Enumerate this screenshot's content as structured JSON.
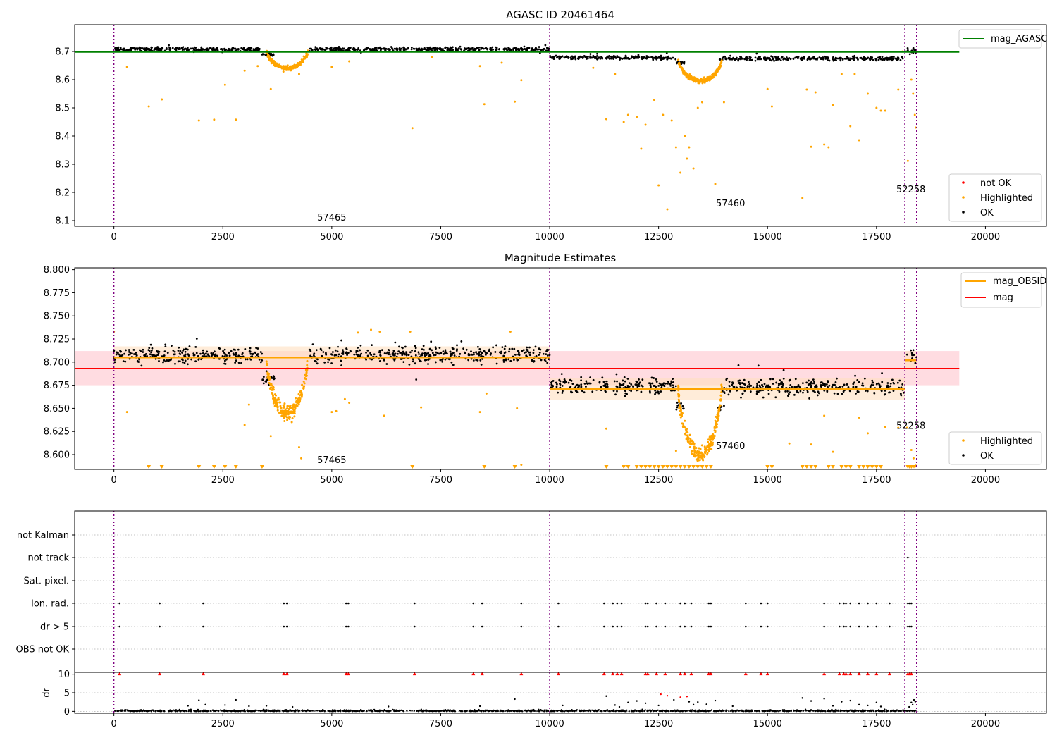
{
  "figure": {
    "colors": {
      "ok": "#000000",
      "highlighted": "#ffa500",
      "not_ok": "#ff0000",
      "agasc_line": "#008000",
      "obsid_line": "#ffa500",
      "mag_line": "#ff0000",
      "mag_band": "#ffc0c8",
      "obsid_band": "#ffe0c0",
      "obs_boundary": "#800080",
      "grid": "#b0b0b0"
    }
  },
  "chart_data": [
    {
      "type": "scatter",
      "title": "AGASC ID 20461464",
      "xlabel": "",
      "ylabel": "",
      "xlim": [
        -900,
        21400
      ],
      "ylim": [
        8.08,
        8.795
      ],
      "xticks": [
        "0",
        "2500",
        "5000",
        "7500",
        "10000",
        "12500",
        "15000",
        "17500",
        "20000"
      ],
      "yticks": [
        "8.1",
        "8.2",
        "8.3",
        "8.4",
        "8.5",
        "8.6",
        "8.7"
      ],
      "obs_boundaries": [
        0,
        10000,
        18150,
        18420
      ],
      "obsid_labels": [
        {
          "label": "57465",
          "x": 5000,
          "y": 8.1
        },
        {
          "label": "57460",
          "x": 14150,
          "y": 8.15
        },
        {
          "label": "52258",
          "x": 18290,
          "y": 8.2
        }
      ],
      "reference_line": {
        "name": "mag_AGASC",
        "value": 8.698,
        "x_range": [
          -900,
          19400
        ]
      },
      "legends": [
        {
          "position": "top-right",
          "entries": [
            "mag_AGASC"
          ]
        },
        {
          "position": "bottom-right",
          "entries": [
            "not OK",
            "Highlighted",
            "OK"
          ]
        }
      ],
      "series": [
        {
          "name": "OK",
          "segments": [
            {
              "x": [
                0,
                3400
              ],
              "mean": 8.708,
              "spread": 0.006
            },
            {
              "x": [
                3400,
                3700
              ],
              "mean": 8.69,
              "spread": 0.006
            },
            {
              "x": [
                4480,
                10000
              ],
              "mean": 8.708,
              "spread": 0.006
            },
            {
              "x": [
                10000,
                12900
              ],
              "mean": 8.678,
              "spread": 0.006
            },
            {
              "x": [
                12900,
                13100
              ],
              "mean": 8.66,
              "spread": 0.006
            },
            {
              "x": [
                13900,
                18150
              ],
              "mean": 8.675,
              "spread": 0.006
            },
            {
              "x": [
                18180,
                18420
              ],
              "mean": 8.703,
              "spread": 0.008
            }
          ]
        },
        {
          "name": "Highlighted",
          "dips": [
            {
              "x": [
                3500,
                4450
              ],
              "depth": 0.06
            },
            {
              "x": [
                12950,
                13950
              ],
              "depth": 0.075
            }
          ],
          "outliers": [
            [
              300,
              8.645
            ],
            [
              800,
              8.505
            ],
            [
              1100,
              8.53
            ],
            [
              1950,
              8.455
            ],
            [
              2300,
              8.458
            ],
            [
              2550,
              8.582
            ],
            [
              2800,
              8.458
            ],
            [
              3000,
              8.632
            ],
            [
              3300,
              8.648
            ],
            [
              3600,
              8.567
            ],
            [
              4250,
              8.62
            ],
            [
              5000,
              8.645
            ],
            [
              5400,
              8.665
            ],
            [
              6850,
              8.428
            ],
            [
              7300,
              8.68
            ],
            [
              8400,
              8.648
            ],
            [
              8500,
              8.513
            ],
            [
              8900,
              8.66
            ],
            [
              9200,
              8.522
            ],
            [
              9350,
              8.598
            ],
            [
              11000,
              8.642
            ],
            [
              11300,
              8.46
            ],
            [
              11500,
              8.62
            ],
            [
              11700,
              8.45
            ],
            [
              11800,
              8.475
            ],
            [
              12000,
              8.468
            ],
            [
              12100,
              8.355
            ],
            [
              12200,
              8.44
            ],
            [
              12400,
              8.528
            ],
            [
              12500,
              8.225
            ],
            [
              12600,
              8.475
            ],
            [
              12700,
              8.14
            ],
            [
              12800,
              8.455
            ],
            [
              12900,
              8.36
            ],
            [
              13000,
              8.27
            ],
            [
              13100,
              8.4
            ],
            [
              13150,
              8.32
            ],
            [
              13200,
              8.36
            ],
            [
              13300,
              8.285
            ],
            [
              13400,
              8.5
            ],
            [
              13500,
              8.52
            ],
            [
              13800,
              8.23
            ],
            [
              14000,
              8.52
            ],
            [
              15000,
              8.567
            ],
            [
              15100,
              8.505
            ],
            [
              15800,
              8.18
            ],
            [
              15900,
              8.565
            ],
            [
              16000,
              8.362
            ],
            [
              16100,
              8.555
            ],
            [
              16300,
              8.37
            ],
            [
              16400,
              8.36
            ],
            [
              16500,
              8.51
            ],
            [
              16700,
              8.62
            ],
            [
              16900,
              8.435
            ],
            [
              17000,
              8.62
            ],
            [
              17100,
              8.385
            ],
            [
              17300,
              8.55
            ],
            [
              17500,
              8.5
            ],
            [
              17600,
              8.49
            ],
            [
              17700,
              8.49
            ],
            [
              18000,
              8.565
            ],
            [
              18100,
              8.7
            ],
            [
              18220,
              8.312
            ],
            [
              18300,
              8.6
            ],
            [
              18340,
              8.55
            ],
            [
              18380,
              8.475
            ],
            [
              18400,
              8.43
            ]
          ]
        },
        {
          "name": "not OK",
          "values": []
        }
      ]
    },
    {
      "type": "scatter",
      "title": "Magnitude Estimates",
      "xlabel": "",
      "ylabel": "",
      "xlim": [
        -900,
        21400
      ],
      "ylim": [
        8.584,
        8.802
      ],
      "xticks": [
        "0",
        "2500",
        "5000",
        "7500",
        "10000",
        "12500",
        "15000",
        "17500",
        "20000"
      ],
      "yticks": [
        "8.600",
        "8.625",
        "8.650",
        "8.675",
        "8.700",
        "8.725",
        "8.750",
        "8.775",
        "8.800"
      ],
      "obs_boundaries": [
        0,
        10000,
        18150,
        18420
      ],
      "obsid_labels": [
        {
          "label": "57465",
          "x": 5000,
          "y": 8.591
        },
        {
          "label": "57460",
          "x": 14150,
          "y": 8.606
        },
        {
          "label": "52258",
          "x": 18290,
          "y": 8.628
        }
      ],
      "mag": {
        "name": "mag",
        "value": 8.693,
        "band": [
          8.675,
          8.712
        ],
        "x_range": [
          -900,
          19400
        ]
      },
      "mag_obsid": [
        {
          "x": [
            0,
            10000
          ],
          "value": 8.705,
          "band": [
            8.693,
            8.717
          ]
        },
        {
          "x": [
            10000,
            18150
          ],
          "value": 8.671,
          "band": [
            8.659,
            8.683
          ]
        },
        {
          "x": [
            18150,
            18420
          ],
          "value": 8.702,
          "band": [
            8.692,
            8.712
          ]
        }
      ],
      "legends": [
        {
          "position": "top-right",
          "entries": [
            "mag_OBSID",
            "mag"
          ]
        },
        {
          "position": "bottom-right",
          "entries": [
            "Highlighted",
            "OK"
          ]
        }
      ],
      "series": [
        {
          "name": "OK",
          "segments": [
            {
              "x": [
                0,
                3400
              ],
              "mean": 8.708,
              "spread": 0.008
            },
            {
              "x": [
                3400,
                3700
              ],
              "mean": 8.683,
              "spread": 0.006
            },
            {
              "x": [
                4480,
                10000
              ],
              "mean": 8.708,
              "spread": 0.008
            },
            {
              "x": [
                10000,
                12900
              ],
              "mean": 8.675,
              "spread": 0.008
            },
            {
              "x": [
                12900,
                13100
              ],
              "mean": 8.652,
              "spread": 0.006
            },
            {
              "x": [
                13850,
                13950
              ],
              "mean": 8.651,
              "spread": 0.004
            },
            {
              "x": [
                13950,
                18150
              ],
              "mean": 8.673,
              "spread": 0.008
            },
            {
              "x": [
                18180,
                18420
              ],
              "mean": 8.705,
              "spread": 0.008
            }
          ]
        },
        {
          "name": "Highlighted",
          "dips": [
            {
              "x": [
                3500,
                4450
              ],
              "depth": 0.06
            },
            {
              "x": [
                12950,
                13950
              ],
              "depth": 0.075
            }
          ],
          "outliers": [
            [
              0,
              8.733
            ],
            [
              300,
              8.646
            ],
            [
              3000,
              8.632
            ],
            [
              3100,
              8.654
            ],
            [
              3600,
              8.62
            ],
            [
              4250,
              8.608
            ],
            [
              4300,
              8.596
            ],
            [
              5000,
              8.646
            ],
            [
              5100,
              8.647
            ],
            [
              5300,
              8.66
            ],
            [
              5400,
              8.656
            ],
            [
              5600,
              8.732
            ],
            [
              5900,
              8.735
            ],
            [
              6100,
              8.733
            ],
            [
              6200,
              8.642
            ],
            [
              6800,
              8.733
            ],
            [
              7050,
              8.651
            ],
            [
              8400,
              8.646
            ],
            [
              8550,
              8.666
            ],
            [
              9100,
              8.733
            ],
            [
              9250,
              8.65
            ],
            [
              9350,
              8.589
            ],
            [
              11300,
              8.628
            ],
            [
              12900,
              8.604
            ],
            [
              15500,
              8.612
            ],
            [
              16000,
              8.611
            ],
            [
              16300,
              8.642
            ],
            [
              16500,
              8.603
            ],
            [
              17100,
              8.64
            ],
            [
              17300,
              8.623
            ],
            [
              17700,
              8.63
            ],
            [
              18000,
              8.629
            ],
            [
              18200,
              8.629
            ],
            [
              18300,
              8.605
            ],
            [
              18350,
              8.596
            ],
            [
              18400,
              8.588
            ]
          ]
        },
        {
          "name": "Highlighted (below axis)",
          "x": [
            800,
            1100,
            1950,
            2300,
            2550,
            2800,
            3400,
            6850,
            8500,
            9200,
            11300,
            11700,
            11800,
            12000,
            12100,
            12200,
            12300,
            12400,
            12500,
            12600,
            12700,
            12800,
            12900,
            13000,
            13100,
            13200,
            13300,
            13400,
            13500,
            13600,
            13700,
            15000,
            15100,
            15800,
            15900,
            16000,
            16100,
            16400,
            16500,
            16700,
            16800,
            16900,
            17100,
            17200,
            17300,
            17400,
            17500,
            17600,
            18220,
            18260,
            18300,
            18340,
            18380
          ]
        }
      ]
    },
    {
      "type": "scatter",
      "title": "",
      "xlabel": "",
      "ylabel": "",
      "xlim": [
        -900,
        21400
      ],
      "row_labels": [
        "not Kalman",
        "not track",
        "Sat. pixel.",
        "Ion. rad.",
        "dr > 5",
        "OBS not OK"
      ],
      "obs_boundaries": [
        0,
        10000,
        18150,
        18420
      ],
      "flags_x": [
        130,
        1050,
        2050,
        3900,
        3970,
        5330,
        5380,
        6900,
        8250,
        8450,
        9350,
        10200,
        11250,
        11450,
        11550,
        11650,
        12200,
        12250,
        12450,
        12650,
        13000,
        13100,
        13250,
        13650,
        13700,
        14500,
        14850,
        15000,
        16300,
        16650,
        16750,
        16800,
        16900,
        17100,
        17300,
        17500,
        17800,
        18220,
        18260,
        18300
      ],
      "flags": {
        "not Kalman": [],
        "not track": [
          18220
        ],
        "Sat. pixel.": [],
        "Ion. rad.": "flags_x",
        "dr > 5": "flags_x",
        "OBS not OK": []
      }
    },
    {
      "type": "scatter",
      "title": "",
      "xlabel": "",
      "ylabel": "dr",
      "xlim": [
        -900,
        21400
      ],
      "ylim": [
        -0.5,
        10.5
      ],
      "xticks": [
        "0",
        "2500",
        "5000",
        "7500",
        "10000",
        "12500",
        "15000",
        "17500",
        "20000"
      ],
      "yticks": [
        "0",
        "5",
        "10"
      ],
      "capped_at": 10,
      "capped_points_x": "flags_x",
      "scattered": [
        [
          1700,
          1.5
        ],
        [
          1950,
          3.0
        ],
        [
          2100,
          1.8
        ],
        [
          2550,
          1.7
        ],
        [
          2800,
          3.1
        ],
        [
          3100,
          1.4
        ],
        [
          3500,
          1.5
        ],
        [
          4100,
          1.2
        ],
        [
          6300,
          1.3
        ],
        [
          8400,
          1.4
        ],
        [
          9200,
          3.3
        ],
        [
          10300,
          1.6
        ],
        [
          11300,
          4.1
        ],
        [
          11500,
          1.7
        ],
        [
          11600,
          1.2
        ],
        [
          11800,
          2.4
        ],
        [
          12000,
          2.8
        ],
        [
          12200,
          2.2
        ],
        [
          12500,
          1.6
        ],
        [
          12550,
          4.6
        ],
        [
          12700,
          4.2
        ],
        [
          12850,
          3.1
        ],
        [
          13000,
          3.8
        ],
        [
          13150,
          4.0
        ],
        [
          13200,
          2.6
        ],
        [
          13300,
          1.8
        ],
        [
          13400,
          2.5
        ],
        [
          13600,
          1.9
        ],
        [
          13800,
          2.9
        ],
        [
          14200,
          1.4
        ],
        [
          15800,
          3.6
        ],
        [
          16000,
          2.8
        ],
        [
          16300,
          3.4
        ],
        [
          16500,
          1.5
        ],
        [
          16700,
          2.6
        ],
        [
          16900,
          2.9
        ],
        [
          17100,
          1.8
        ],
        [
          17300,
          1.6
        ],
        [
          17500,
          2.4
        ],
        [
          17600,
          1.3
        ],
        [
          18250,
          1.2
        ],
        [
          18300,
          2.4
        ],
        [
          18330,
          1.8
        ],
        [
          18360,
          3.1
        ],
        [
          18390,
          2.6
        ]
      ],
      "baseline_spread": 0.3
    }
  ]
}
